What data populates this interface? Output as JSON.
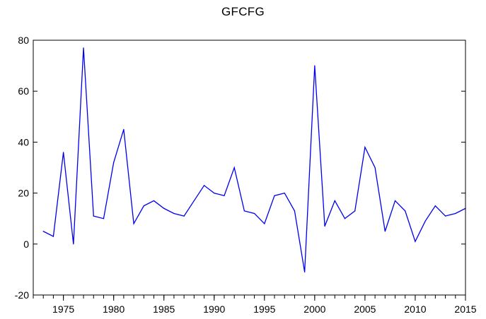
{
  "chart_data": {
    "type": "line",
    "title": "GFCFG",
    "xlabel": "",
    "ylabel": "",
    "xlim": [
      1972,
      2015
    ],
    "ylim": [
      -20,
      80
    ],
    "y_ticks": [
      -20,
      0,
      20,
      40,
      60,
      80
    ],
    "x_tick_labels": [
      1975,
      1980,
      1985,
      1990,
      1995,
      2000,
      2005,
      2010,
      2015
    ],
    "x_minor_ticks": "yearly",
    "grid": false,
    "legend": "none",
    "colors": {
      "line": "#0000ee",
      "axis": "#000000",
      "background": "#ffffff"
    },
    "series": [
      {
        "x": [
          1973,
          1974,
          1975,
          1976,
          1977,
          1978,
          1979,
          1980,
          1981,
          1982,
          1983,
          1984,
          1985,
          1986,
          1987,
          1988,
          1989,
          1990,
          1991,
          1992,
          1993,
          1994,
          1995,
          1996,
          1997,
          1998,
          1999,
          2000,
          2001,
          2002,
          2003,
          2004,
          2005,
          2006,
          2007,
          2008,
          2009,
          2010,
          2011,
          2012,
          2013,
          2014,
          2015
        ],
        "values": [
          5,
          3,
          36,
          0,
          77,
          11,
          10,
          32,
          45,
          8,
          15,
          17,
          14,
          12,
          11,
          17,
          23,
          20,
          19,
          30,
          13,
          12,
          8,
          19,
          20,
          13,
          -11,
          70,
          7,
          17,
          10,
          13,
          38,
          30,
          5,
          17,
          13,
          1,
          9,
          15,
          11,
          12,
          14
        ]
      }
    ]
  }
}
